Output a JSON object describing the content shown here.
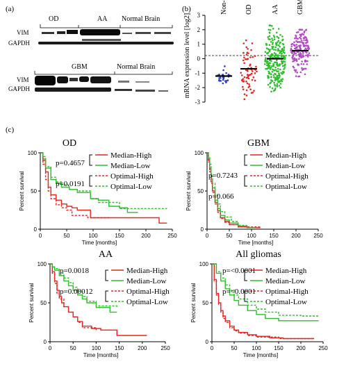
{
  "colors": {
    "red": "#e8241e",
    "green": "#2bbf29",
    "purple": "#b44ac6",
    "blue": "#2c3cc0",
    "gray": "#777777"
  },
  "panel_a": {
    "label": "(a)",
    "blot1": {
      "groups": [
        "OD",
        "AA",
        "Normal Brain"
      ],
      "rows": [
        "VIM",
        "GAPDH"
      ]
    },
    "blot2": {
      "groups": [
        "GBM",
        "Normal Brain"
      ],
      "rows": [
        "VIM",
        "GAPDH"
      ]
    }
  },
  "panel_b": {
    "label": "(b)"
  },
  "panel_c": {
    "label": "(c)"
  },
  "chart_data": [
    {
      "type": "scatter",
      "panel": "b",
      "ylabel": "mRNA expression level [log2]",
      "ylim": [
        -3,
        3
      ],
      "yticks": [
        "3",
        "2",
        "1",
        "0",
        "-1",
        "-2",
        "-3"
      ],
      "categories": [
        "Non-tumor",
        "OD",
        "AA",
        "GBM"
      ],
      "medians": [
        -1.2,
        -0.7,
        0.0,
        0.55
      ],
      "ranges": [
        [
          -1.8,
          -0.5
        ],
        [
          -2.8,
          1.9
        ],
        [
          -2.7,
          2.3
        ],
        [
          -2.1,
          2.0
        ]
      ]
    },
    {
      "type": "line",
      "panel": "c",
      "title": "OD",
      "xlabel": "Time [months]",
      "ylabel": "Percent survival",
      "xlim": [
        0,
        250
      ],
      "ylim": [
        0,
        100
      ],
      "xticks": [
        "0",
        "50",
        "100",
        "150",
        "200",
        "250"
      ],
      "yticks": [
        "0",
        "50",
        "100"
      ],
      "pvalues": [
        "p=0.4657",
        "p=0.0191"
      ],
      "legend": [
        "Median-High",
        "Median-Low",
        "Optimal-High",
        "Optimal-Low"
      ],
      "series": [
        {
          "name": "Median-High",
          "x": [
            0,
            5,
            10,
            15,
            20,
            30,
            40,
            50,
            60,
            70,
            95,
            130,
            225,
            240
          ],
          "y": [
            100,
            90,
            75,
            55,
            45,
            38,
            33,
            30,
            28,
            25,
            15,
            15,
            8,
            8
          ]
        },
        {
          "name": "Median-Low",
          "x": [
            0,
            5,
            10,
            20,
            30,
            40,
            55,
            70,
            95,
            110,
            130,
            150,
            165,
            185
          ],
          "y": [
            100,
            92,
            80,
            65,
            60,
            55,
            52,
            48,
            40,
            38,
            30,
            28,
            22,
            22
          ]
        },
        {
          "name": "Optimal-High",
          "x": [
            0,
            5,
            10,
            15,
            20,
            30,
            40,
            50,
            60,
            90,
            130
          ],
          "y": [
            100,
            85,
            65,
            50,
            40,
            32,
            28,
            25,
            18,
            15,
            15
          ]
        },
        {
          "name": "Optimal-Low",
          "x": [
            0,
            5,
            10,
            20,
            30,
            40,
            55,
            70,
            95,
            110,
            150,
            240
          ],
          "y": [
            100,
            95,
            82,
            68,
            62,
            58,
            52,
            50,
            40,
            35,
            27,
            27
          ]
        }
      ]
    },
    {
      "type": "line",
      "panel": "c",
      "title": "GBM",
      "xlabel": "Time [months]",
      "ylabel": "Percent survival",
      "xlim": [
        0,
        250
      ],
      "ylim": [
        0,
        100
      ],
      "xticks": [
        "0",
        "50",
        "100",
        "150",
        "200",
        "250"
      ],
      "yticks": [
        "0",
        "50",
        "100"
      ],
      "pvalues": [
        "p=0.7243",
        "p=0.066"
      ],
      "legend": [
        "Median-High",
        "Median-Low",
        "Optimal-High",
        "Optimal-Low"
      ],
      "series": [
        {
          "name": "Median-High",
          "x": [
            0,
            3,
            6,
            9,
            12,
            18,
            24,
            30,
            40,
            50,
            70,
            90,
            120
          ],
          "y": [
            100,
            90,
            78,
            62,
            50,
            35,
            24,
            15,
            10,
            6,
            3,
            2,
            2
          ]
        },
        {
          "name": "Median-Low",
          "x": [
            0,
            3,
            6,
            9,
            12,
            18,
            24,
            30,
            40,
            50,
            70,
            90,
            110
          ],
          "y": [
            100,
            92,
            80,
            66,
            54,
            38,
            27,
            18,
            12,
            8,
            4,
            2,
            2
          ]
        },
        {
          "name": "Optimal-High",
          "x": [
            0,
            3,
            6,
            9,
            12,
            18,
            24,
            30,
            40,
            50,
            70,
            120
          ],
          "y": [
            100,
            88,
            75,
            60,
            48,
            33,
            22,
            14,
            9,
            6,
            3,
            3
          ]
        },
        {
          "name": "Optimal-Low",
          "x": [
            0,
            3,
            6,
            9,
            12,
            18,
            24,
            30,
            40,
            55,
            70,
            90
          ],
          "y": [
            100,
            95,
            85,
            72,
            60,
            45,
            33,
            23,
            16,
            10,
            5,
            5
          ]
        }
      ]
    },
    {
      "type": "line",
      "panel": "c",
      "title": "AA",
      "xlabel": "Time [months]",
      "ylabel": "Percent survival",
      "xlim": [
        0,
        250
      ],
      "ylim": [
        0,
        100
      ],
      "xticks": [
        "0",
        "50",
        "100",
        "150",
        "200",
        "250"
      ],
      "yticks": [
        "0",
        "50",
        "100"
      ],
      "pvalues": [
        "p=0.0018",
        "p=0.00012"
      ],
      "legend": [
        "Median-High",
        "Median-Low",
        "Optimal-High",
        "Optimal-Low"
      ],
      "series": [
        {
          "name": "Median-High",
          "x": [
            0,
            5,
            10,
            15,
            20,
            25,
            30,
            40,
            50,
            60,
            70,
            90,
            110,
            145,
            210
          ],
          "y": [
            100,
            90,
            78,
            66,
            58,
            50,
            45,
            38,
            32,
            26,
            20,
            17,
            15,
            8,
            8
          ]
        },
        {
          "name": "Median-Low",
          "x": [
            0,
            5,
            10,
            20,
            30,
            40,
            50,
            60,
            70,
            80,
            100,
            130,
            145
          ],
          "y": [
            100,
            96,
            92,
            85,
            78,
            72,
            66,
            60,
            55,
            50,
            44,
            38,
            38
          ]
        },
        {
          "name": "Optimal-High",
          "x": [
            0,
            5,
            10,
            15,
            20,
            30,
            40,
            50,
            60,
            70,
            100
          ],
          "y": [
            100,
            88,
            75,
            62,
            55,
            45,
            38,
            32,
            25,
            18,
            15
          ]
        },
        {
          "name": "Optimal-Low",
          "x": [
            0,
            5,
            10,
            20,
            30,
            40,
            50,
            60,
            70,
            80,
            100,
            145
          ],
          "y": [
            100,
            97,
            94,
            88,
            82,
            76,
            70,
            65,
            58,
            52,
            46,
            44
          ]
        }
      ]
    },
    {
      "type": "line",
      "panel": "c",
      "title": "All gliomas",
      "xlabel": "Time [months]",
      "ylabel": "Percent survival",
      "xlim": [
        0,
        250
      ],
      "ylim": [
        0,
        100
      ],
      "xticks": [
        "0",
        "50",
        "100",
        "150",
        "200",
        "250"
      ],
      "yticks": [
        "0",
        "50",
        "100"
      ],
      "pvalues": [
        "p=<0.0001",
        "p=<0.0001"
      ],
      "legend": [
        "Median-High",
        "Median-Low",
        "Optimal-High",
        "Optimal-Low"
      ],
      "series": [
        {
          "name": "Median-High",
          "x": [
            0,
            5,
            10,
            15,
            20,
            25,
            30,
            40,
            50,
            60,
            80,
            100,
            130,
            160,
            230
          ],
          "y": [
            100,
            80,
            62,
            50,
            40,
            33,
            27,
            20,
            15,
            12,
            9,
            7,
            5,
            4,
            4
          ]
        },
        {
          "name": "Median-Low",
          "x": [
            0,
            10,
            20,
            30,
            40,
            50,
            60,
            80,
            100,
            120,
            150,
            200,
            240
          ],
          "y": [
            100,
            88,
            78,
            68,
            60,
            53,
            47,
            40,
            35,
            30,
            27,
            27,
            27
          ]
        },
        {
          "name": "Optimal-High",
          "x": [
            0,
            5,
            10,
            15,
            20,
            25,
            30,
            40,
            50,
            60,
            80,
            100,
            150,
            230
          ],
          "y": [
            100,
            78,
            60,
            48,
            38,
            30,
            25,
            18,
            14,
            11,
            8,
            6,
            4,
            4
          ]
        },
        {
          "name": "Optimal-Low",
          "x": [
            0,
            10,
            20,
            30,
            40,
            50,
            60,
            80,
            100,
            120,
            150,
            200,
            240
          ],
          "y": [
            100,
            90,
            82,
            73,
            66,
            60,
            55,
            47,
            42,
            38,
            34,
            33,
            33
          ]
        }
      ]
    }
  ]
}
